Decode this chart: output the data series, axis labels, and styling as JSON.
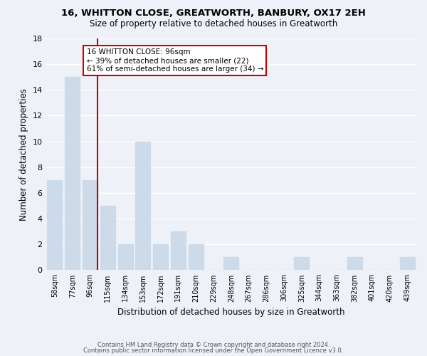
{
  "title1": "16, WHITTON CLOSE, GREATWORTH, BANBURY, OX17 2EH",
  "title2": "Size of property relative to detached houses in Greatworth",
  "xlabel": "Distribution of detached houses by size in Greatworth",
  "ylabel": "Number of detached properties",
  "categories": [
    "58sqm",
    "77sqm",
    "96sqm",
    "115sqm",
    "134sqm",
    "153sqm",
    "172sqm",
    "191sqm",
    "210sqm",
    "229sqm",
    "248sqm",
    "267sqm",
    "286sqm",
    "306sqm",
    "325sqm",
    "344sqm",
    "363sqm",
    "382sqm",
    "401sqm",
    "420sqm",
    "439sqm"
  ],
  "values": [
    7,
    15,
    7,
    5,
    2,
    10,
    2,
    3,
    2,
    0,
    1,
    0,
    0,
    0,
    1,
    0,
    0,
    1,
    0,
    0,
    1
  ],
  "bar_color": "#ccdaea",
  "highlight_index": 2,
  "highlight_line_color": "#cc0000",
  "annotation_text": "16 WHITTON CLOSE: 96sqm\n← 39% of detached houses are smaller (22)\n61% of semi-detached houses are larger (34) →",
  "annotation_box_color": "#ffffff",
  "annotation_box_edgecolor": "#cc0000",
  "ylim": [
    0,
    18
  ],
  "yticks": [
    0,
    2,
    4,
    6,
    8,
    10,
    12,
    14,
    16,
    18
  ],
  "footer1": "Contains HM Land Registry data © Crown copyright and database right 2024.",
  "footer2": "Contains public sector information licensed under the Open Government Licence v3.0.",
  "bg_color": "#eef2f8",
  "grid_color": "#ffffff"
}
